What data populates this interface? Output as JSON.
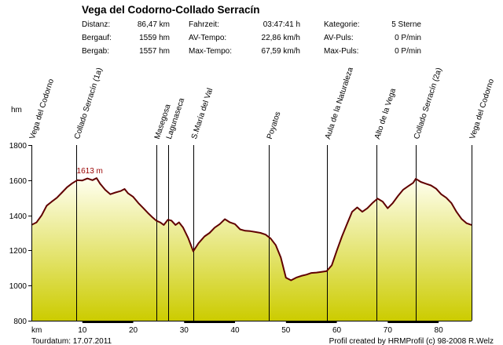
{
  "chart_data": {
    "type": "area",
    "title": "Vega del Codorno-Collado Serracín",
    "stats": [
      [
        {
          "label": "Distanz:",
          "value": "86,47 km"
        },
        {
          "label": "Fahrzeit:",
          "value": "03:47:41 h"
        },
        {
          "label": "Kategorie:",
          "value": "5 Sterne"
        }
      ],
      [
        {
          "label": "Bergauf:",
          "value": "1559 hm"
        },
        {
          "label": "AV-Tempo:",
          "value": "22,86 km/h"
        },
        {
          "label": "AV-Puls:",
          "value": "0 P/min"
        }
      ],
      [
        {
          "label": "Bergab:",
          "value": "1557 hm"
        },
        {
          "label": "Max-Tempo:",
          "value": "67,59 km/h"
        },
        {
          "label": "Max-Puls:",
          "value": "0 P/min"
        }
      ]
    ],
    "xlabel": "km",
    "ylabel": "hm",
    "xlim": [
      0,
      86.47
    ],
    "ylim": [
      800,
      1800
    ],
    "x_ticks": [
      10,
      20,
      30,
      40,
      50,
      60,
      70,
      80
    ],
    "y_ticks": [
      800,
      1000,
      1200,
      1400,
      1600,
      1800
    ],
    "max_label": "1613 m",
    "max_point": {
      "x": 9.5,
      "y": 1613
    },
    "waypoints": [
      {
        "name": "Vega del Codorno",
        "km": 0
      },
      {
        "name": "Collado Serracín (1a)",
        "km": 8.8
      },
      {
        "name": "Masegosa",
        "km": 24.5
      },
      {
        "name": "Lagunaseca",
        "km": 26.8
      },
      {
        "name": "S.María del Val",
        "km": 31.8
      },
      {
        "name": "Poyatos",
        "km": 46.7
      },
      {
        "name": "Aula de la Naturaleza",
        "km": 58.0
      },
      {
        "name": "Alto de la Vega",
        "km": 67.8
      },
      {
        "name": "Collado Serracín (2a)",
        "km": 75.5
      },
      {
        "name": "Vega del Codorno",
        "km": 86.47
      }
    ],
    "profile": [
      [
        0,
        1345
      ],
      [
        1,
        1360
      ],
      [
        2,
        1400
      ],
      [
        3,
        1455
      ],
      [
        4,
        1478
      ],
      [
        5,
        1500
      ],
      [
        6,
        1530
      ],
      [
        7,
        1560
      ],
      [
        8,
        1582
      ],
      [
        9,
        1600
      ],
      [
        10,
        1598
      ],
      [
        11,
        1610
      ],
      [
        12,
        1600
      ],
      [
        12.8,
        1612
      ],
      [
        13.5,
        1580
      ],
      [
        14.5,
        1545
      ],
      [
        15.5,
        1520
      ],
      [
        16.5,
        1530
      ],
      [
        17.5,
        1538
      ],
      [
        18.3,
        1550
      ],
      [
        19,
        1525
      ],
      [
        20,
        1505
      ],
      [
        21,
        1470
      ],
      [
        22,
        1440
      ],
      [
        23,
        1410
      ],
      [
        23.8,
        1388
      ],
      [
        24.5,
        1370
      ],
      [
        25.3,
        1360
      ],
      [
        26,
        1345
      ],
      [
        26.8,
        1375
      ],
      [
        27.5,
        1370
      ],
      [
        28.3,
        1345
      ],
      [
        29,
        1360
      ],
      [
        29.8,
        1330
      ],
      [
        30.8,
        1270
      ],
      [
        31.8,
        1195
      ],
      [
        32.8,
        1240
      ],
      [
        34,
        1280
      ],
      [
        35,
        1300
      ],
      [
        36,
        1330
      ],
      [
        37,
        1350
      ],
      [
        38,
        1378
      ],
      [
        39,
        1360
      ],
      [
        40,
        1350
      ],
      [
        41,
        1320
      ],
      [
        42,
        1312
      ],
      [
        43,
        1310
      ],
      [
        44,
        1305
      ],
      [
        45,
        1300
      ],
      [
        46,
        1290
      ],
      [
        47,
        1268
      ],
      [
        48,
        1230
      ],
      [
        49,
        1160
      ],
      [
        50,
        1045
      ],
      [
        51,
        1030
      ],
      [
        52,
        1045
      ],
      [
        53,
        1055
      ],
      [
        54,
        1062
      ],
      [
        55,
        1072
      ],
      [
        56,
        1074
      ],
      [
        57,
        1078
      ],
      [
        58,
        1082
      ],
      [
        59,
        1115
      ],
      [
        60,
        1200
      ],
      [
        61,
        1280
      ],
      [
        62,
        1350
      ],
      [
        63,
        1420
      ],
      [
        64,
        1445
      ],
      [
        65,
        1420
      ],
      [
        66,
        1440
      ],
      [
        67,
        1470
      ],
      [
        68,
        1495
      ],
      [
        69,
        1478
      ],
      [
        70,
        1440
      ],
      [
        71,
        1470
      ],
      [
        72,
        1510
      ],
      [
        73,
        1545
      ],
      [
        74,
        1565
      ],
      [
        75,
        1585
      ],
      [
        75.5,
        1608
      ],
      [
        76.5,
        1590
      ],
      [
        77.5,
        1580
      ],
      [
        78.5,
        1570
      ],
      [
        79.5,
        1552
      ],
      [
        80.5,
        1520
      ],
      [
        81.5,
        1500
      ],
      [
        82.5,
        1470
      ],
      [
        83.5,
        1420
      ],
      [
        84.5,
        1380
      ],
      [
        85.5,
        1355
      ],
      [
        86.47,
        1345
      ]
    ],
    "footer_left": "Tourdatum: 17.07.2011",
    "footer_right": "Profil created by HRMProfil (c) 98-2008 R.Welz",
    "colors": {
      "fill_top": "#fffff0",
      "fill_bottom": "#cccc00",
      "line": "#600000",
      "max_label": "#990000"
    }
  }
}
